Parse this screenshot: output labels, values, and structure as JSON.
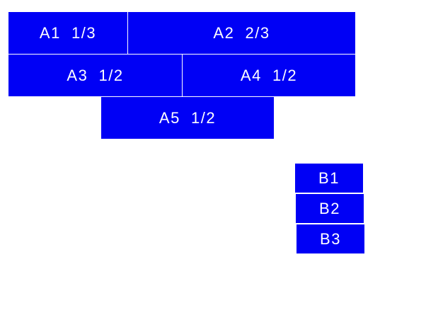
{
  "colors": {
    "box": "#0000f5",
    "text": "#ffffff",
    "background": "#ffffff"
  },
  "group_a": [
    {
      "label": "A1  1/3"
    },
    {
      "label": "A2  2/3"
    },
    {
      "label": "A3  1/2"
    },
    {
      "label": "A4  1/2"
    },
    {
      "label": "A5  1/2"
    }
  ],
  "group_b": [
    {
      "label": "B1"
    },
    {
      "label": "B2"
    },
    {
      "label": "B3"
    }
  ]
}
